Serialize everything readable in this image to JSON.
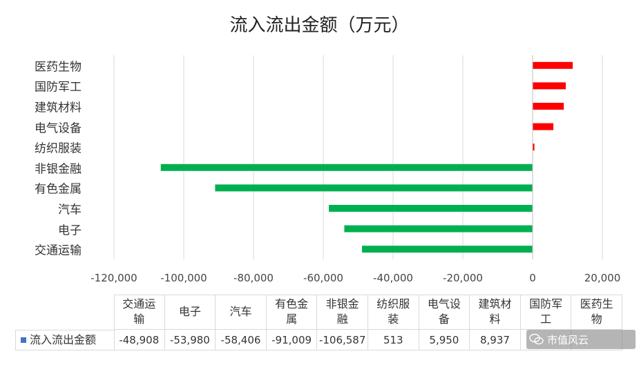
{
  "chart_data": {
    "type": "bar",
    "orientation": "horizontal",
    "title": "流入流出金额（万元）",
    "categories": [
      "交通运输",
      "电子",
      "汽车",
      "有色金属",
      "非银金融",
      "纺织服装",
      "电气设备",
      "建筑材料",
      "国防军工",
      "医药生物"
    ],
    "category_display": {
      "交通运输": "交通运\n输",
      "有色金属": "有色金\n属",
      "非银金融": "非银金\n融",
      "纺织服装": "纺织服\n装",
      "电气设备": "电气设\n备",
      "建筑材料": "建筑材\n料",
      "国防军工": "国防军\n工",
      "医药生物": "医药生\n物"
    },
    "series": [
      {
        "name": "流入流出金额",
        "values": [
          -48908,
          -53980,
          -58406,
          -91009,
          -106587,
          513,
          5950,
          8937,
          9500,
          11500
        ],
        "value_labels": [
          "-48,908",
          "-53,980",
          "-58,406",
          "-91,009",
          "-106,587",
          "513",
          "5,950",
          "8,937",
          "",
          ""
        ]
      }
    ],
    "xlim": [
      -120000,
      20000
    ],
    "xticks": [
      -120000,
      -100000,
      -80000,
      -60000,
      -40000,
      -20000,
      0,
      20000
    ],
    "xtick_labels": [
      "-120,000",
      "-100,000",
      "-80,000",
      "-60,000",
      "-40,000",
      "-20,000",
      "0",
      "20,000"
    ],
    "grid": true,
    "data_table": true,
    "colors": {
      "positive": "#ff0000",
      "negative": "#00b050",
      "gridline": "#d9d9d9",
      "series_key": "#4472c4"
    }
  },
  "watermark": {
    "text": "市值风云",
    "icon": "wechat-icon"
  }
}
